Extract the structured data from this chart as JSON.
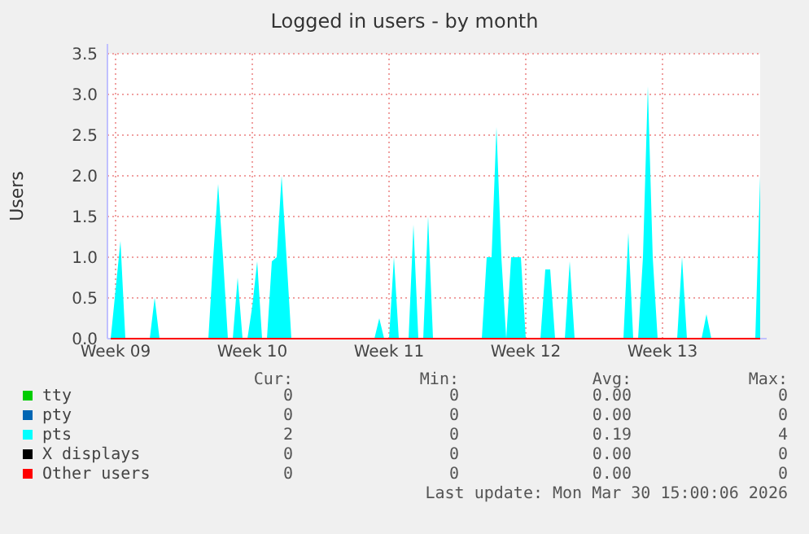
{
  "chart_data": {
    "type": "area",
    "title": "Logged in users - by month",
    "ylabel": "Users",
    "categories": [
      null,
      "Week 09",
      null,
      null,
      null,
      null,
      null,
      null,
      null,
      null,
      null,
      null,
      null,
      null,
      null,
      null,
      null,
      null,
      null,
      null,
      null,
      null,
      null,
      null,
      null,
      null,
      null,
      null,
      null,
      "Week 10",
      null,
      null,
      null,
      null,
      null,
      null,
      null,
      null,
      null,
      null,
      null,
      null,
      null,
      null,
      null,
      null,
      null,
      null,
      null,
      null,
      null,
      null,
      null,
      null,
      null,
      null,
      null,
      "Week 11",
      null,
      null,
      null,
      null,
      null,
      null,
      null,
      null,
      null,
      null,
      null,
      null,
      null,
      null,
      null,
      null,
      null,
      null,
      null,
      null,
      null,
      null,
      null,
      null,
      null,
      null,
      null,
      "Week 12",
      null,
      null,
      null,
      null,
      null,
      null,
      null,
      null,
      null,
      null,
      null,
      null,
      null,
      null,
      null,
      null,
      null,
      null,
      null,
      null,
      null,
      null,
      null,
      null,
      null,
      null,
      null,
      "Week 13",
      null,
      null,
      null,
      null,
      null,
      null,
      null,
      null,
      null,
      null,
      null,
      null,
      null,
      null,
      null,
      null,
      null,
      null,
      null,
      null
    ],
    "ylim": [
      0,
      3.5
    ],
    "yticks": [
      {
        "value": 0,
        "label": "0.0"
      },
      {
        "value": 0.5,
        "label": "0.5"
      },
      {
        "value": 1,
        "label": "1.0"
      },
      {
        "value": 1.5,
        "label": "1.5"
      },
      {
        "value": 2,
        "label": "2.0"
      },
      {
        "value": 2.5,
        "label": "2.5"
      },
      {
        "value": 3,
        "label": "3.0"
      },
      {
        "value": 3.5,
        "label": "3.5"
      }
    ],
    "grid": true,
    "legend": "bottom",
    "series": [
      {
        "name": "tty",
        "color": "#00cc00",
        "type": "line",
        "values": [
          null,
          null,
          null,
          null,
          null,
          null,
          null,
          null,
          null,
          null,
          null,
          null,
          null,
          null,
          null,
          null,
          null,
          null,
          null,
          null,
          null,
          null,
          null,
          null,
          null,
          null,
          null,
          null,
          null,
          null,
          null,
          null,
          null,
          null,
          null,
          null,
          null,
          null,
          null,
          null,
          null,
          null,
          null,
          null,
          null,
          null,
          null,
          null,
          null,
          null,
          null,
          null,
          null,
          null,
          null,
          null,
          null,
          null,
          null,
          null,
          null,
          null,
          null,
          null,
          null,
          null,
          null,
          null,
          null,
          null,
          null,
          null,
          null,
          null,
          null,
          null,
          null,
          null,
          null,
          null,
          null,
          null,
          null,
          null,
          null,
          null,
          null,
          null,
          null,
          null,
          null,
          null,
          null,
          null,
          null,
          null,
          null,
          null,
          null,
          null,
          null,
          null,
          null,
          null,
          null,
          null,
          null,
          null,
          null,
          null,
          null,
          null,
          null,
          null,
          null,
          null,
          null,
          null,
          null,
          null,
          null,
          null,
          null,
          null,
          null,
          null,
          null,
          null,
          null,
          null,
          null,
          null,
          null,
          null
        ]
      },
      {
        "name": "pty",
        "color": "#0066b3",
        "type": "line",
        "values": [
          null,
          null,
          null,
          null,
          null,
          null,
          null,
          null,
          null,
          null,
          null,
          null,
          null,
          null,
          null,
          null,
          null,
          null,
          null,
          null,
          null,
          null,
          null,
          null,
          null,
          null,
          null,
          null,
          null,
          null,
          null,
          null,
          null,
          null,
          null,
          null,
          null,
          null,
          null,
          null,
          null,
          null,
          null,
          null,
          null,
          null,
          null,
          null,
          null,
          null,
          null,
          null,
          null,
          null,
          null,
          null,
          null,
          null,
          null,
          null,
          null,
          null,
          null,
          null,
          null,
          null,
          null,
          null,
          null,
          null,
          null,
          null,
          null,
          null,
          null,
          null,
          null,
          null,
          null,
          null,
          null,
          null,
          null,
          null,
          null,
          null,
          null,
          null,
          null,
          null,
          null,
          null,
          null,
          null,
          null,
          null,
          null,
          null,
          null,
          null,
          null,
          null,
          null,
          null,
          null,
          null,
          null,
          null,
          null,
          null,
          null,
          null,
          null,
          null,
          null,
          null,
          null,
          null,
          null,
          null,
          null,
          null,
          null,
          null,
          null,
          null,
          null,
          null,
          null,
          null,
          null,
          null,
          null,
          null
        ]
      },
      {
        "name": "pts",
        "color": "#00ffff",
        "values": [
          0,
          0.6,
          1.2,
          0,
          0,
          0,
          0,
          0,
          0,
          0.5,
          0,
          0,
          0,
          0,
          0,
          0,
          0,
          0,
          0,
          0,
          0,
          1.0,
          1.9,
          1.0,
          0,
          0,
          0.75,
          0,
          0,
          0.4,
          0.95,
          0,
          0,
          0.95,
          1.0,
          2.0,
          1.0,
          0,
          0,
          0,
          0,
          0,
          0,
          0,
          0,
          0,
          0,
          0,
          0,
          0,
          0,
          0,
          0,
          0,
          0,
          0.25,
          0,
          0,
          1.0,
          0,
          0,
          0,
          1.4,
          0,
          0,
          1.5,
          0,
          0,
          0,
          0,
          0,
          0,
          0,
          0,
          0,
          0,
          0,
          1.0,
          1.0,
          2.6,
          1.0,
          0,
          1.0,
          1.0,
          1.0,
          0,
          0,
          0,
          0,
          0.85,
          0.85,
          0,
          0,
          0,
          0.95,
          0,
          0,
          0,
          0,
          0,
          0,
          0,
          0,
          0,
          0,
          0,
          1.3,
          0,
          0,
          1.0,
          3.1,
          1.0,
          0,
          0,
          0,
          0,
          0,
          1.0,
          0,
          0,
          0,
          0,
          0.3,
          0,
          0,
          0,
          0,
          0,
          0,
          0,
          0,
          0,
          0,
          2.0
        ]
      },
      {
        "name": "X displays",
        "color": "#000000",
        "type": "line",
        "values": [
          null,
          null,
          null,
          null,
          null,
          null,
          null,
          null,
          null,
          null,
          null,
          null,
          null,
          null,
          null,
          null,
          null,
          null,
          null,
          null,
          null,
          null,
          null,
          null,
          null,
          null,
          null,
          null,
          null,
          null,
          null,
          null,
          null,
          null,
          null,
          null,
          null,
          null,
          null,
          null,
          null,
          null,
          null,
          null,
          null,
          null,
          null,
          null,
          null,
          null,
          null,
          null,
          null,
          null,
          null,
          null,
          null,
          null,
          null,
          null,
          null,
          null,
          null,
          null,
          null,
          null,
          null,
          null,
          null,
          null,
          null,
          null,
          null,
          null,
          null,
          null,
          null,
          null,
          null,
          null,
          null,
          null,
          null,
          null,
          null,
          null,
          null,
          null,
          null,
          null,
          null,
          null,
          null,
          null,
          null,
          null,
          null,
          null,
          null,
          null,
          null,
          null,
          null,
          null,
          null,
          null,
          null,
          null,
          null,
          null,
          null,
          null,
          null,
          null,
          null,
          null,
          null,
          null,
          null,
          null,
          null,
          null,
          null,
          null,
          null,
          null,
          null,
          null,
          null,
          null,
          null,
          null,
          null,
          null
        ]
      },
      {
        "name": "Other users",
        "color": "#ff0000",
        "type": "line",
        "values": [
          0,
          0,
          0,
          0,
          0,
          0,
          0,
          0,
          0,
          0,
          0,
          0,
          0,
          0,
          0,
          0,
          0,
          0,
          0,
          0,
          0,
          0,
          0,
          0,
          0,
          0,
          0,
          0,
          0,
          0,
          0,
          0,
          0,
          0,
          0,
          0,
          0,
          0,
          0,
          0,
          0,
          0,
          0,
          0,
          0,
          0,
          0,
          0,
          0,
          0,
          0,
          0,
          0,
          0,
          0,
          0,
          0,
          0,
          0,
          0,
          0,
          0,
          0,
          0,
          0,
          0,
          0,
          0,
          0,
          0,
          0,
          0,
          0,
          0,
          0,
          0,
          0,
          0,
          0,
          0,
          0,
          0,
          0,
          0,
          0,
          0,
          0,
          0,
          0,
          0,
          0,
          0,
          0,
          0,
          0,
          0,
          0,
          0,
          0,
          0,
          0,
          0,
          0,
          0,
          0,
          0,
          0,
          0,
          0,
          0,
          0,
          0,
          0,
          0,
          0,
          0,
          0,
          0,
          0,
          0,
          0,
          0,
          0,
          0,
          0,
          0,
          0,
          0,
          0,
          0,
          0,
          0,
          0,
          0
        ]
      }
    ],
    "annotations": [
      "Cur:",
      "Min:",
      "Avg:",
      "Max:",
      "0",
      "0",
      "0.00",
      "0",
      "0",
      "0",
      "0.00",
      "0",
      "2",
      "0",
      "0.19",
      "4",
      "0",
      "0",
      "0.00",
      "0",
      "0",
      "0",
      "0.00",
      "0",
      "Last update: Mon Mar 30 15:00:06 2026"
    ]
  }
}
